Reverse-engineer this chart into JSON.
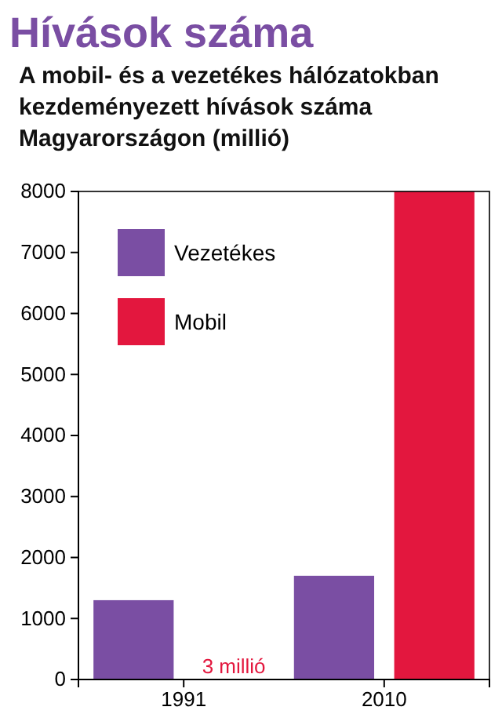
{
  "chart_data": {
    "type": "bar",
    "title": "Hívások száma",
    "subtitle": "A mobil- és a vezetékes hálózatokban kezdeményezett hívások száma Magyarországon (millió)",
    "categories": [
      "1991",
      "2010"
    ],
    "series": [
      {
        "name": "Vezetékes",
        "color": "#7a4ea3",
        "values": [
          1300,
          1700
        ]
      },
      {
        "name": "Mobil",
        "color": "#e3173e",
        "values": [
          3,
          8000
        ],
        "value_labels": [
          "3 millió",
          null
        ]
      }
    ],
    "ylim": [
      0,
      8000
    ],
    "yticks": [
      0,
      1000,
      2000,
      3000,
      4000,
      5000,
      6000,
      7000,
      8000
    ],
    "grid": false,
    "legend": "top left"
  }
}
